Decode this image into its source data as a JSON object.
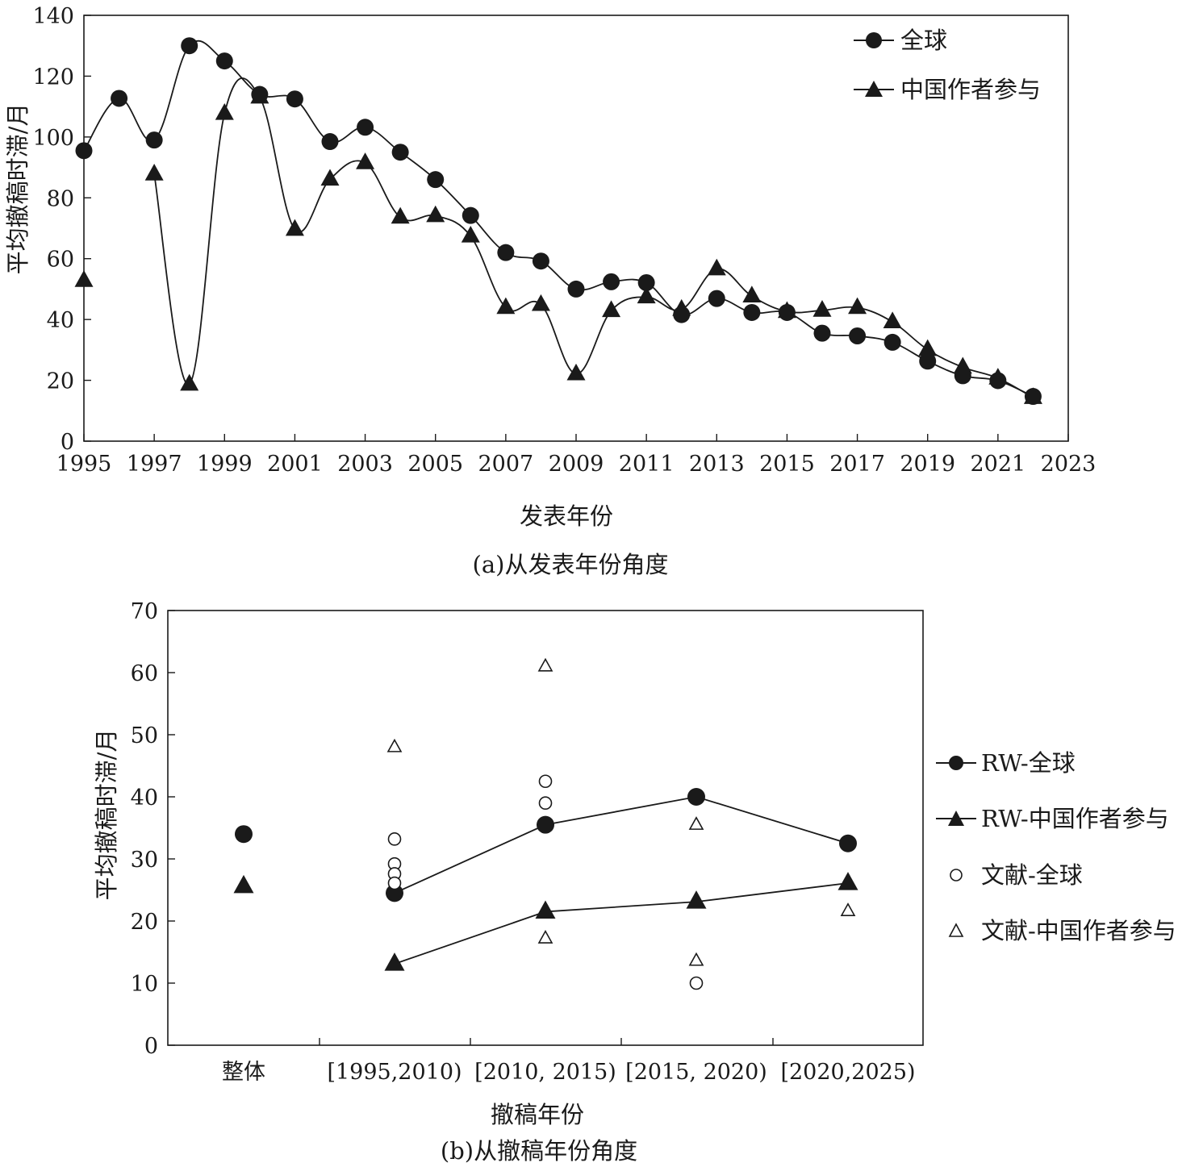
{
  "chart_data": [
    {
      "type": "line",
      "caption": "(a)从发表年份角度",
      "xlabel": "发表年份",
      "ylabel": "平均撤稿时滞/月",
      "xlim": [
        1995,
        2023
      ],
      "ylim": [
        0,
        140
      ],
      "xticks": [
        1995,
        1997,
        1999,
        2001,
        2003,
        2005,
        2007,
        2009,
        2011,
        2013,
        2015,
        2017,
        2019,
        2021,
        2023
      ],
      "yticks": [
        0,
        20,
        40,
        60,
        80,
        100,
        120,
        140
      ],
      "grid": false,
      "legend_position": "top-right",
      "series": [
        {
          "name": "全球",
          "marker": "circle",
          "x": [
            1995,
            1996,
            1997,
            1998,
            1999,
            2000,
            2001,
            2002,
            2003,
            2004,
            2005,
            2006,
            2007,
            2008,
            2009,
            2010,
            2011,
            2012,
            2013,
            2014,
            2015,
            2016,
            2017,
            2018,
            2019,
            2020,
            2021,
            2022
          ],
          "y": [
            95.5,
            112.7,
            99,
            130,
            125,
            114,
            112.5,
            98.5,
            103.2,
            95,
            86,
            74.2,
            62,
            59.2,
            50,
            52.4,
            52.1,
            41.6,
            46.9,
            42.3,
            42.3,
            35.5,
            34.6,
            32.5,
            26.3,
            21.5,
            19.9,
            14.7
          ]
        },
        {
          "name": "中国作者参与",
          "marker": "triangle",
          "x": [
            1995,
            1997,
            1998,
            1999,
            2000,
            2001,
            2002,
            2003,
            2004,
            2005,
            2006,
            2007,
            2008,
            2009,
            2010,
            2011,
            2012,
            2013,
            2014,
            2015,
            2016,
            2017,
            2018,
            2019,
            2020,
            2021,
            2022
          ],
          "y": [
            52.8,
            87.8,
            18.7,
            107.7,
            113.1,
            69.6,
            86.1,
            91.5,
            73.6,
            74.1,
            67.4,
            43.9,
            44.9,
            22.1,
            42.9,
            47.4,
            43.3,
            56.6,
            47.7,
            42.6,
            43,
            43.9,
            39.2,
            30.1,
            24.3,
            20.7,
            14.3
          ]
        }
      ]
    },
    {
      "type": "scatter",
      "caption": "(b)从撤稿年份角度",
      "xlabel": "撤稿年份",
      "ylabel": "平均撤稿时滞/月",
      "categories": [
        "整体",
        "[1995,2010)",
        "[2010, 2015)",
        "[2015, 2020)",
        "[2020,2025)"
      ],
      "ylim": [
        0,
        70
      ],
      "yticks": [
        0,
        10,
        20,
        30,
        40,
        50,
        60,
        70
      ],
      "grid": false,
      "legend_position": "right",
      "series": [
        {
          "name": "RW-全球",
          "marker": "filled-circle",
          "connect": true,
          "points": [
            {
              "category": "整体",
              "value": 34,
              "connected": false
            },
            {
              "category": "[1995,2010)",
              "value": 24.5
            },
            {
              "category": "[2010, 2015)",
              "value": 35.5
            },
            {
              "category": "[2015, 2020)",
              "value": 40
            },
            {
              "category": "[2020,2025)",
              "value": 32.5
            }
          ]
        },
        {
          "name": "RW-中国作者参与",
          "marker": "filled-triangle",
          "connect": true,
          "points": [
            {
              "category": "整体",
              "value": 25.6,
              "connected": false
            },
            {
              "category": "[1995,2010)",
              "value": 13.1
            },
            {
              "category": "[2010, 2015)",
              "value": 21.5
            },
            {
              "category": "[2015, 2020)",
              "value": 23.1
            },
            {
              "category": "[2020,2025)",
              "value": 26.1
            }
          ]
        },
        {
          "name": "文献-全球",
          "marker": "open-circle",
          "connect": false,
          "points": [
            {
              "category": "[1995,2010)",
              "value": 33.2
            },
            {
              "category": "[1995,2010)",
              "value": 29.2
            },
            {
              "category": "[1995,2010)",
              "value": 27.6
            },
            {
              "category": "[1995,2010)",
              "value": 26.1
            },
            {
              "category": "[2010, 2015)",
              "value": 42.5
            },
            {
              "category": "[2010, 2015)",
              "value": 39
            },
            {
              "category": "[2015, 2020)",
              "value": 10
            }
          ]
        },
        {
          "name": "文献-中国作者参与",
          "marker": "open-triangle",
          "connect": false,
          "points": [
            {
              "category": "[1995,2010)",
              "value": 48
            },
            {
              "category": "[2010, 2015)",
              "value": 61
            },
            {
              "category": "[2010, 2015)",
              "value": 17.2
            },
            {
              "category": "[2015, 2020)",
              "value": 35.5
            },
            {
              "category": "[2015, 2020)",
              "value": 13.6
            },
            {
              "category": "[2020,2025)",
              "value": 21.6
            }
          ]
        }
      ]
    }
  ]
}
